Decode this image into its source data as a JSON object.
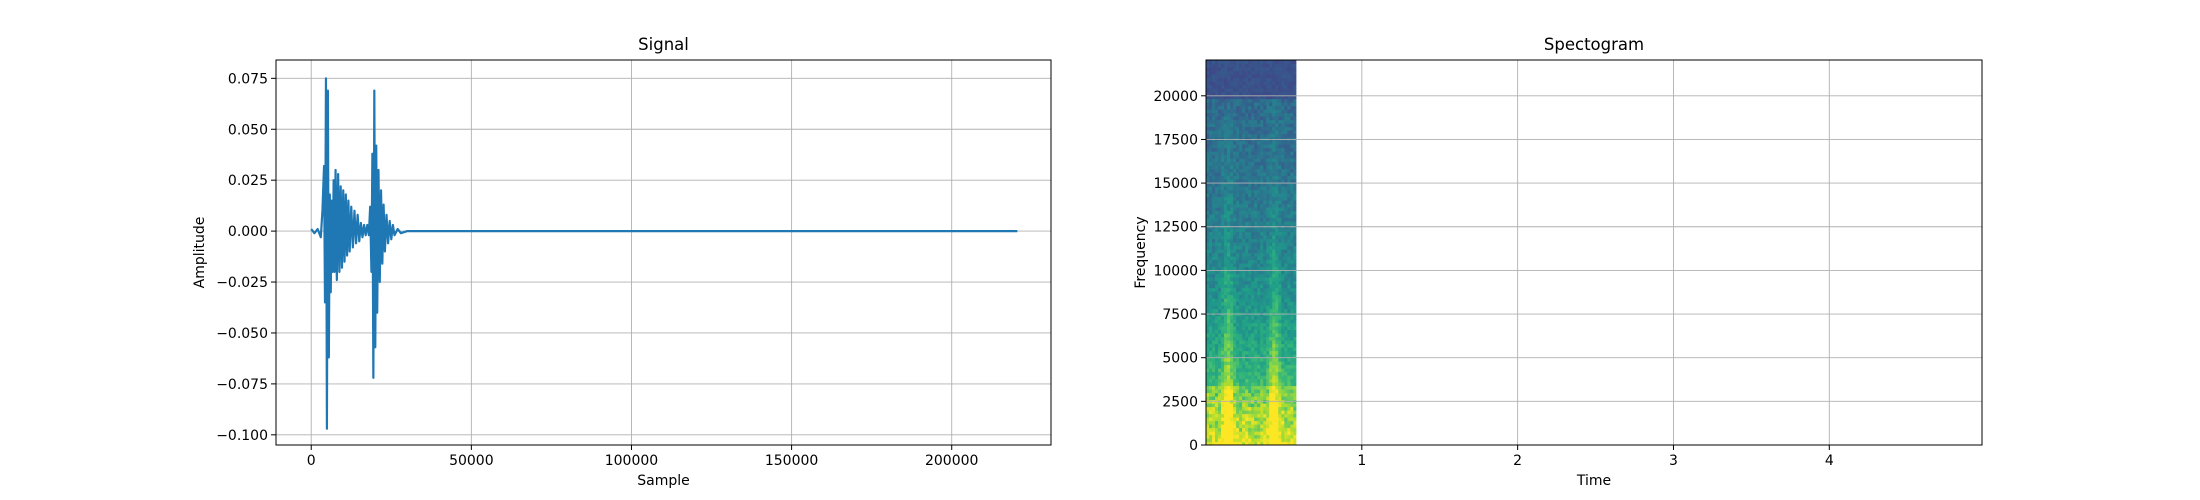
{
  "chart_data": [
    {
      "type": "line",
      "title": "Signal",
      "xlabel": "Sample",
      "ylabel": "Amplitude",
      "xlim": [
        -11000,
        231000
      ],
      "ylim": [
        -0.105,
        0.084
      ],
      "grid": true,
      "xticks": [
        0,
        50000,
        100000,
        150000,
        200000
      ],
      "xtick_labels": [
        "0",
        "50000",
        "100000",
        "150000",
        "200000"
      ],
      "yticks": [
        -0.1,
        -0.075,
        -0.05,
        -0.025,
        0.0,
        0.025,
        0.05,
        0.075
      ],
      "ytick_labels": [
        "−0.100",
        "−0.075",
        "−0.050",
        "−0.025",
        "0.000",
        "0.025",
        "0.050",
        "0.075"
      ],
      "series": [
        {
          "name": "signal",
          "color": "#1f77b4",
          "x": [
            0,
            1000,
            2000,
            3000,
            3500,
            4000,
            4300,
            4600,
            4900,
            5200,
            5500,
            5800,
            6100,
            6400,
            6700,
            7000,
            7300,
            7600,
            8000,
            8400,
            8800,
            9200,
            9600,
            10000,
            10400,
            10800,
            11200,
            11600,
            12000,
            12500,
            13000,
            13500,
            14000,
            14500,
            15000,
            15500,
            16000,
            16500,
            17000,
            17500,
            18000,
            18400,
            18800,
            19100,
            19400,
            19700,
            20000,
            20300,
            20600,
            21000,
            21400,
            21800,
            22200,
            22600,
            23000,
            23500,
            24000,
            24500,
            25000,
            25500,
            26000,
            27000,
            28000,
            30000,
            50000,
            100000,
            150000,
            200000,
            220500
          ],
          "y": [
            0.001,
            -0.001,
            0.001,
            -0.003,
            0.01,
            0.032,
            -0.035,
            0.075,
            -0.097,
            0.069,
            -0.062,
            0.018,
            -0.03,
            0.015,
            -0.02,
            0.025,
            -0.02,
            0.03,
            -0.024,
            0.028,
            -0.02,
            0.022,
            -0.018,
            0.02,
            -0.015,
            0.018,
            -0.012,
            0.015,
            -0.01,
            0.012,
            -0.008,
            0.01,
            -0.006,
            0.008,
            -0.005,
            0.004,
            -0.003,
            0.003,
            -0.002,
            0.003,
            -0.002,
            0.012,
            -0.02,
            0.038,
            -0.072,
            0.069,
            -0.057,
            0.042,
            -0.04,
            0.03,
            -0.025,
            0.02,
            -0.016,
            0.013,
            -0.01,
            0.008,
            -0.006,
            0.005,
            -0.004,
            0.003,
            -0.002,
            0.001,
            -0.001,
            0.0,
            0.0,
            0.0,
            0.0,
            0.0,
            0.0
          ]
        }
      ]
    },
    {
      "type": "heatmap",
      "title": "Spectogram",
      "xlabel": "Time",
      "ylabel": "Frequency",
      "xlim": [
        0,
        4.98
      ],
      "ylim": [
        0,
        22050
      ],
      "grid": true,
      "data_extent_time": [
        0,
        0.58
      ],
      "xticks": [
        1,
        2,
        3,
        4
      ],
      "xtick_labels": [
        "1",
        "2",
        "3",
        "4"
      ],
      "yticks": [
        0,
        2500,
        5000,
        7500,
        10000,
        12500,
        15000,
        17500,
        20000
      ],
      "ytick_labels": [
        "0",
        "2500",
        "5000",
        "7500",
        "10000",
        "12500",
        "15000",
        "17500",
        "20000"
      ],
      "colormap": "viridis",
      "bright_bands_time": [
        0.14,
        0.44
      ],
      "top_cutoff_frequency": 19800
    }
  ],
  "colors": {
    "line": "#1f77b4",
    "grid": "#b0b0b0"
  }
}
